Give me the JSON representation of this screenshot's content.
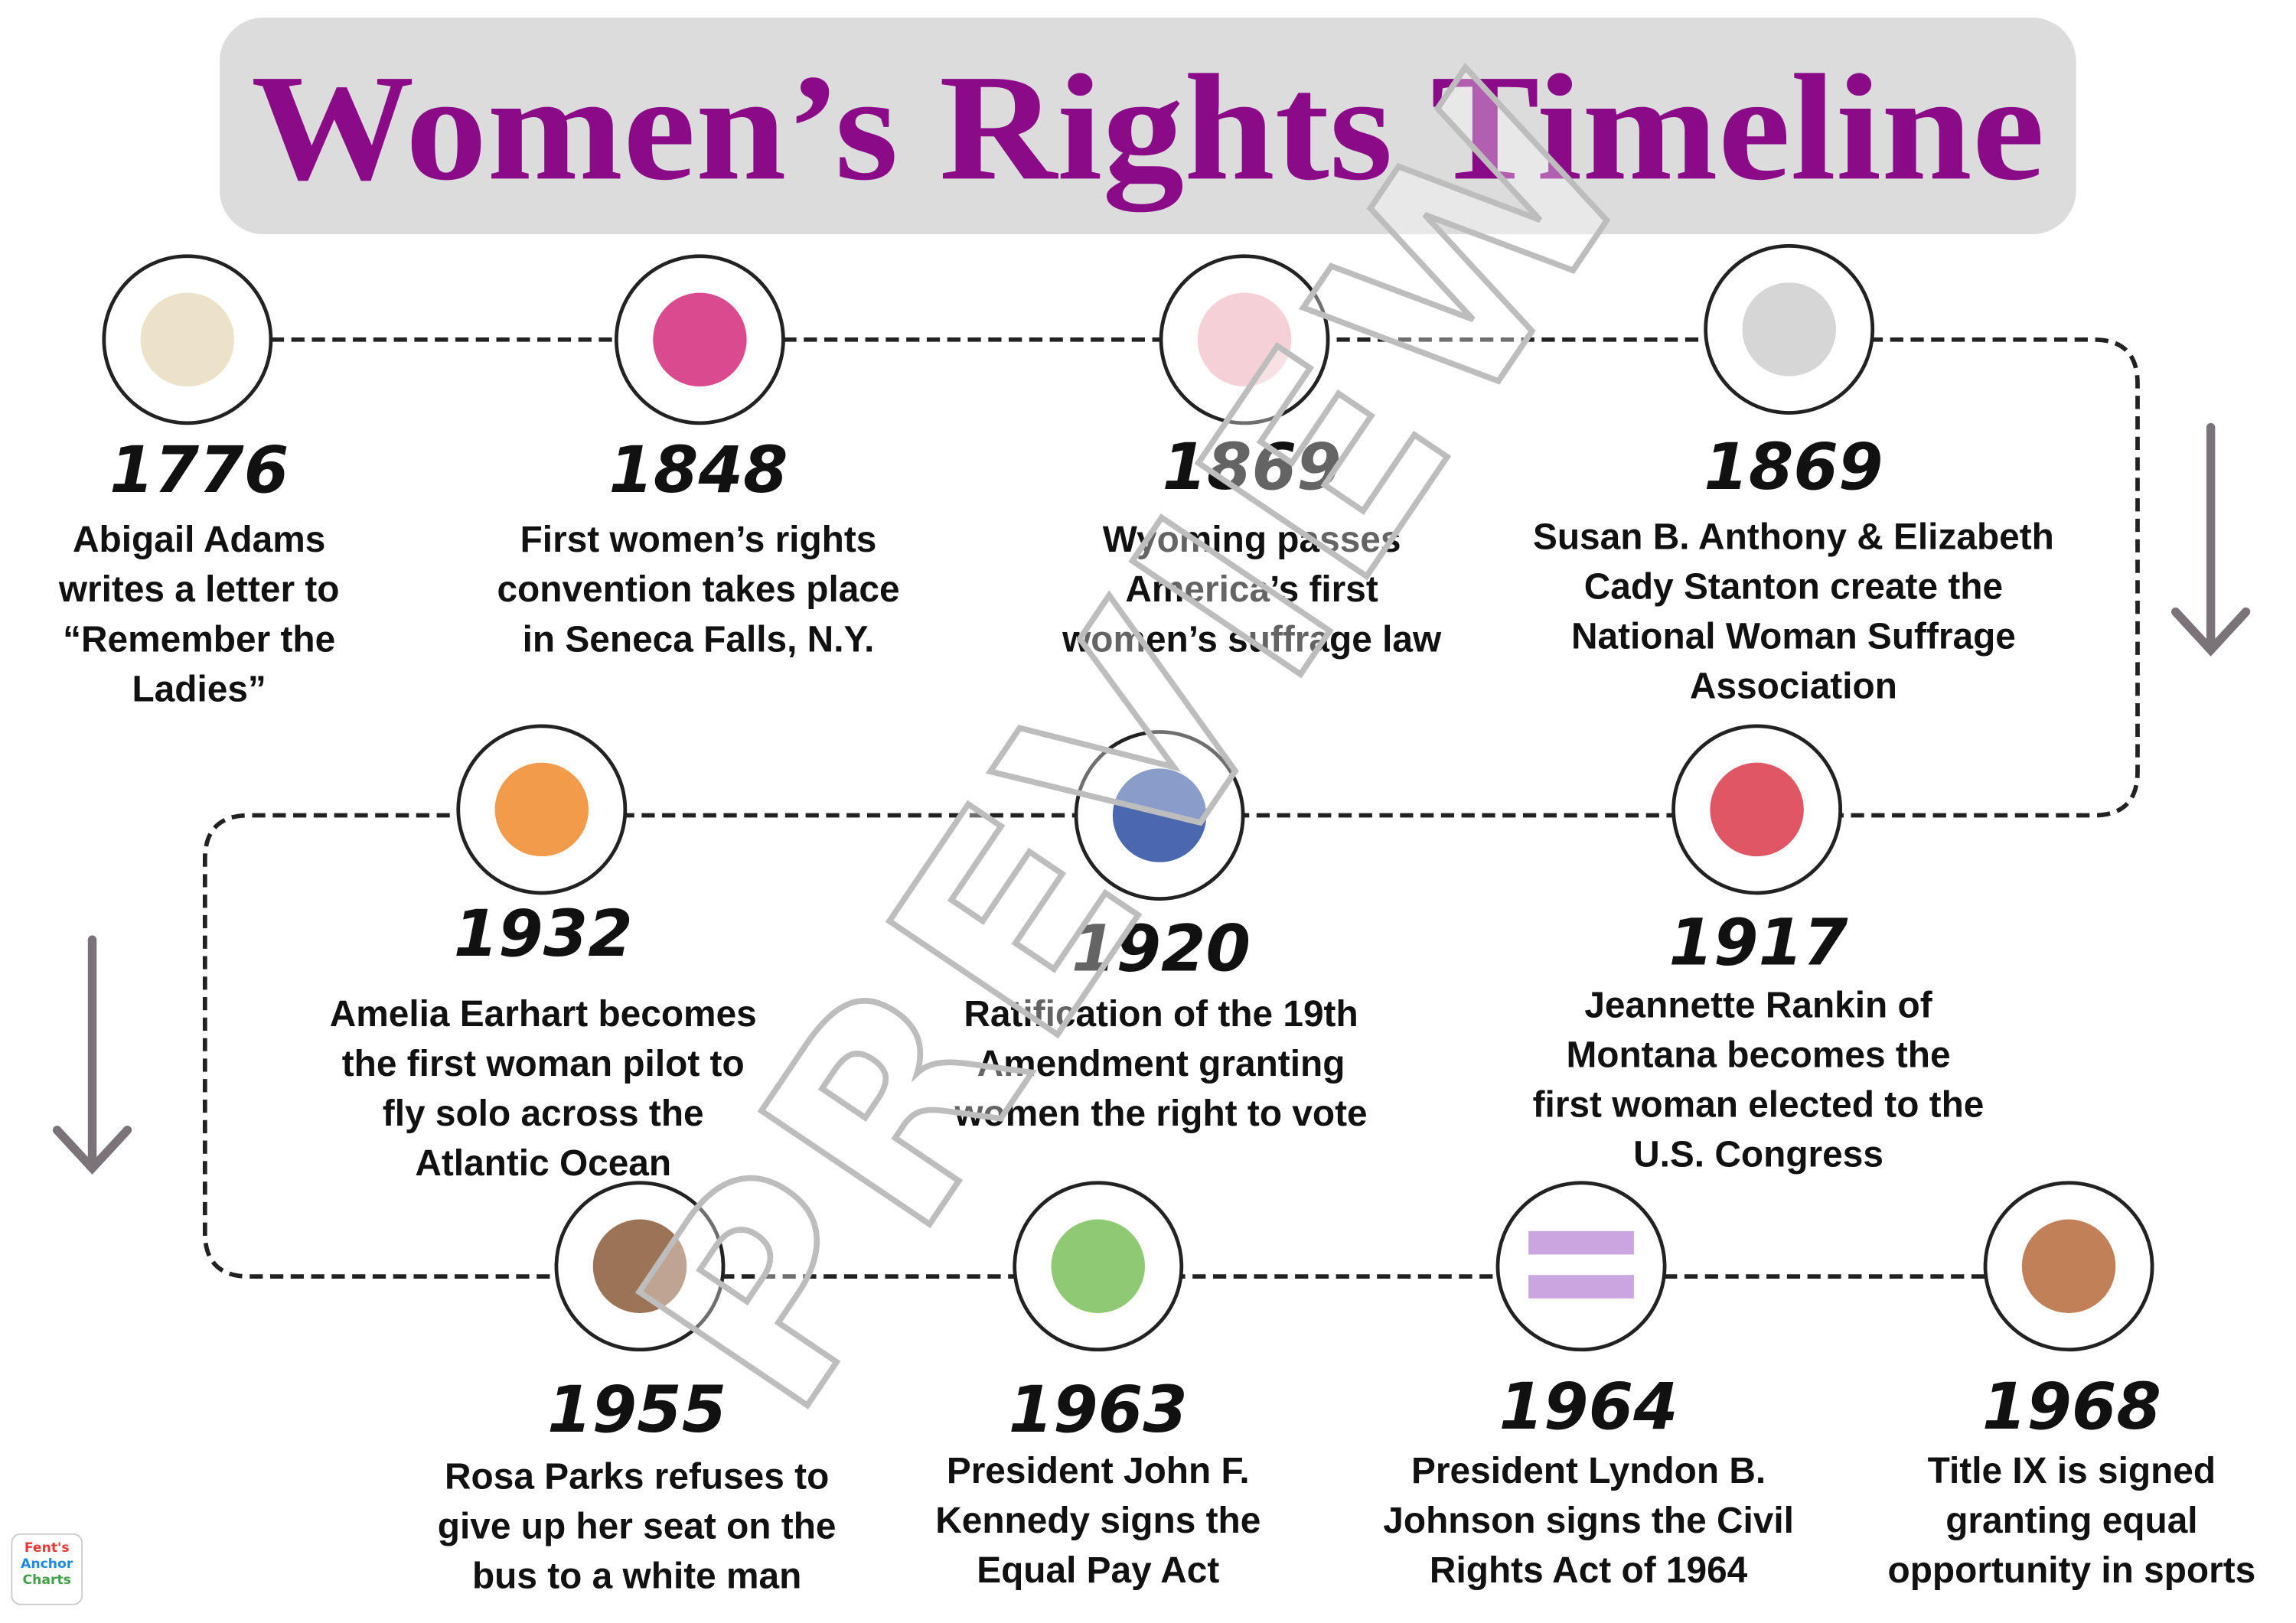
{
  "title": "Women’s Rights Timeline",
  "watermark": "PREVIEW",
  "logo": [
    "Fent's",
    "Anchor",
    "Charts"
  ],
  "events": [
    {
      "year": "1776",
      "lines": [
        "Abigail Adams",
        "writes a letter to",
        "“Remember the",
        "Ladies”"
      ]
    },
    {
      "year": "1848",
      "lines": [
        "First women’s rights",
        "convention takes place",
        "in Seneca Falls, N.Y."
      ]
    },
    {
      "year": "1869",
      "lines": [
        "Wyoming passes",
        "America’s first",
        "women’s suffrage law"
      ]
    },
    {
      "year": "1869",
      "lines": [
        "Susan B. Anthony & Elizabeth",
        "Cady Stanton create the",
        "National Woman Suffrage",
        "Association"
      ]
    },
    {
      "year": "1917",
      "lines": [
        "Jeannette Rankin of",
        "Montana becomes the",
        "first woman elected to the",
        "U.S. Congress"
      ]
    },
    {
      "year": "1920",
      "lines": [
        "Ratification of the 19th",
        "Amendment granting",
        "women the right to vote"
      ]
    },
    {
      "year": "1932",
      "lines": [
        "Amelia Earhart becomes",
        "the first woman pilot to",
        "fly solo across the",
        "Atlantic Ocean"
      ]
    },
    {
      "year": "1955",
      "lines": [
        "Rosa Parks refuses to",
        "give up her seat on the",
        "bus to a white man"
      ]
    },
    {
      "year": "1963",
      "lines": [
        "President John F.",
        "Kennedy signs the",
        "Equal Pay Act"
      ]
    },
    {
      "year": "1964",
      "lines": [
        "President Lyndon B.",
        "Johnson signs the Civil",
        "Rights Act of 1964"
      ]
    },
    {
      "year": "1968",
      "lines": [
        "Title IX is signed",
        "granting equal",
        "opportunity in sports"
      ]
    }
  ]
}
